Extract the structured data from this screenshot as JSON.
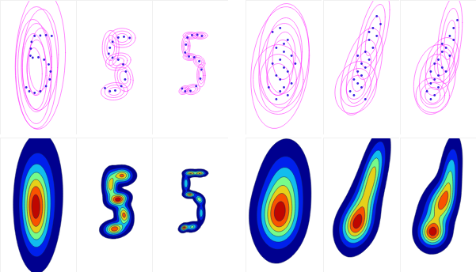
{
  "chart_data": [
    {
      "type": "scatter",
      "tick_labels": false,
      "xlim": [
        0,
        20
      ],
      "ylim": [
        0,
        34
      ],
      "color": "#3b1ee0",
      "x": [
        13.5,
        12,
        10.5,
        9,
        8.2,
        8,
        7.9,
        8.5,
        10,
        11.5,
        12.7,
        13.2,
        13,
        12,
        10.5,
        9,
        7.6,
        6.8
      ],
      "y": [
        25,
        25.2,
        25.1,
        25,
        23.5,
        21.8,
        20,
        19.5,
        19.6,
        19,
        17.8,
        16,
        14,
        12.3,
        11,
        10.6,
        11,
        12
      ],
      "components": {
        "color": "#ff33ff",
        "x": [
          9.5,
          10.5,
          9
        ],
        "y": [
          17,
          19,
          16
        ],
        "sx": [
          2.5,
          3,
          2
        ],
        "sy": [
          7,
          8,
          6
        ],
        "rho": [
          0,
          0.1,
          -0.1
        ]
      }
    },
    {
      "type": "scatter",
      "tick_labels": false,
      "xlim": [
        0,
        20
      ],
      "ylim": [
        0,
        34
      ],
      "color": "#3b1ee0",
      "x": [
        14,
        12.5,
        11,
        9.5,
        8.8,
        8.5,
        9.5,
        11,
        12.3,
        13,
        12.8,
        11.8,
        10.2,
        8.8,
        7.5
      ],
      "y": [
        24.5,
        24.8,
        24.6,
        23.5,
        22,
        20.5,
        19.5,
        19,
        17.8,
        16,
        14,
        12.3,
        11.2,
        11,
        11.8
      ],
      "components": {
        "color": "#ff33ff",
        "x": [
          12,
          9,
          11,
          12.5,
          10
        ],
        "y": [
          24.5,
          22,
          18.5,
          14.5,
          11
        ],
        "sx": [
          1.6,
          1,
          1.5,
          1.1,
          1.6
        ],
        "sy": [
          1.1,
          2,
          1,
          1.6,
          1
        ],
        "rho": [
          0,
          0,
          0.2,
          -0.2,
          0.1
        ]
      }
    },
    {
      "type": "scatter",
      "tick_labels": false,
      "xlim": [
        0,
        20
      ],
      "ylim": [
        0,
        34
      ],
      "color": "#3b1ee0",
      "x": [
        13,
        11.8,
        10.4,
        9.2,
        8.8,
        8.6,
        9.6,
        11,
        12.3,
        12.9,
        12.6,
        11.5,
        10,
        8.6,
        7.8
      ],
      "y": [
        25,
        25.3,
        25.2,
        24.6,
        22.8,
        20.8,
        19.8,
        19.6,
        18.6,
        16.5,
        14.2,
        12.3,
        11.1,
        11,
        11.7
      ],
      "components": {
        "color": "#ff33ff",
        "x": [
          12.5,
          10,
          8.8,
          9.8,
          12.3,
          12.8,
          10.5,
          8.3
        ],
        "y": [
          25.1,
          25.1,
          22.5,
          19.7,
          18.5,
          15,
          11.5,
          11.3
        ],
        "sx": [
          0.9,
          0.9,
          0.5,
          0.8,
          0.7,
          0.5,
          0.9,
          0.6
        ],
        "sy": [
          0.4,
          0.4,
          1.2,
          0.4,
          0.7,
          1.3,
          0.6,
          0.5
        ],
        "rho": [
          0,
          0,
          0,
          0,
          -0.3,
          0,
          0.2,
          0.3
        ]
      }
    },
    {
      "type": "scatter",
      "tick_labels": false,
      "xlim": [
        0,
        20
      ],
      "ylim": [
        0,
        34
      ],
      "color": "#3b1ee0",
      "x": [
        7,
        9,
        11,
        8,
        10,
        12,
        9,
        7,
        10,
        11,
        8,
        9,
        12,
        10,
        6,
        9,
        11,
        8,
        10,
        13
      ],
      "y": [
        26,
        27,
        24,
        22,
        21,
        20,
        19,
        18,
        17,
        16,
        15,
        14,
        13,
        12,
        12,
        11,
        10,
        9,
        23,
        18
      ],
      "components": {
        "color": "#ff33ff",
        "x": [
          9,
          10,
          8.5
        ],
        "y": [
          17,
          20,
          14
        ],
        "sx": [
          3.5,
          3,
          3
        ],
        "sy": [
          7,
          6,
          4
        ],
        "rho": [
          0.2,
          0.1,
          0
        ]
      }
    },
    {
      "type": "scatter",
      "tick_labels": false,
      "xlim": [
        0,
        20
      ],
      "ylim": [
        0,
        34
      ],
      "color": "#3b1ee0",
      "x": [
        14,
        15,
        13,
        14,
        12,
        13,
        11,
        12,
        10,
        11,
        9,
        10,
        8,
        9,
        10,
        7,
        8,
        11,
        9,
        12
      ],
      "y": [
        30,
        28,
        27,
        25,
        24,
        22,
        21,
        19,
        18,
        17,
        16,
        15,
        14,
        13,
        12,
        11,
        10,
        9,
        20,
        26
      ],
      "components": {
        "color": "#ff33ff",
        "x": [
          10,
          13,
          8.5
        ],
        "y": [
          16,
          25,
          12
        ],
        "sx": [
          2.5,
          2,
          2.5
        ],
        "sy": [
          5,
          5,
          3
        ],
        "rho": [
          0.5,
          0.6,
          0.2
        ]
      }
    },
    {
      "type": "scatter",
      "tick_labels": false,
      "xlim": [
        0,
        20
      ],
      "ylim": [
        0,
        34
      ],
      "color": "#3b1ee0",
      "x": [
        15,
        14,
        13,
        14,
        12,
        11,
        13,
        10,
        9,
        11,
        8,
        10,
        9,
        8,
        10,
        7,
        9,
        12,
        11,
        8
      ],
      "y": [
        29,
        27,
        25,
        24,
        22,
        21,
        20,
        19,
        18,
        17,
        16,
        15,
        14,
        13,
        12,
        11,
        10,
        16,
        23,
        9
      ],
      "components": {
        "color": "#ff33ff",
        "x": [
          9,
          13,
          11,
          8.5
        ],
        "y": [
          14,
          24,
          18,
          10
        ],
        "sx": [
          2.5,
          1.5,
          2,
          2
        ],
        "sy": [
          4,
          5,
          3,
          2
        ],
        "rho": [
          0.2,
          0.4,
          0.3,
          0
        ]
      }
    },
    {
      "type": "contour",
      "tick_labels": false,
      "xlim": [
        0,
        20
      ],
      "ylim": [
        0,
        34
      ],
      "components": {
        "x": [
          9.5,
          10.5,
          9
        ],
        "y": [
          17,
          19,
          16
        ],
        "sx": [
          2.5,
          3,
          2
        ],
        "sy": [
          7,
          8,
          6
        ],
        "rho": [
          0,
          0.1,
          -0.1
        ]
      }
    },
    {
      "type": "contour",
      "tick_labels": false,
      "xlim": [
        0,
        20
      ],
      "ylim": [
        0,
        34
      ],
      "components": {
        "x": [
          12,
          9,
          11,
          12.5,
          10
        ],
        "y": [
          24.5,
          22,
          18.5,
          14.5,
          11
        ],
        "sx": [
          1.6,
          1,
          1.5,
          1.1,
          1.6
        ],
        "sy": [
          1.1,
          2,
          1,
          1.6,
          1
        ],
        "rho": [
          0,
          0,
          0.2,
          -0.2,
          0.1
        ]
      }
    },
    {
      "type": "contour",
      "tick_labels": false,
      "xlim": [
        0,
        20
      ],
      "ylim": [
        0,
        34
      ],
      "components": {
        "x": [
          12.5,
          10,
          8.8,
          9.8,
          12.3,
          12.8,
          10.5,
          8.3
        ],
        "y": [
          25.1,
          25.1,
          22.5,
          19.7,
          18.5,
          15,
          11.5,
          11.3
        ],
        "sx": [
          0.9,
          0.9,
          0.5,
          0.8,
          0.7,
          0.5,
          0.9,
          0.6
        ],
        "sy": [
          0.4,
          0.4,
          1.2,
          0.4,
          0.7,
          1.3,
          0.6,
          0.5
        ],
        "rho": [
          0,
          0,
          0,
          0,
          -0.3,
          0,
          0.2,
          0.3
        ]
      }
    },
    {
      "type": "contour",
      "tick_labels": false,
      "xlim": [
        0,
        20
      ],
      "ylim": [
        0,
        34
      ],
      "components": {
        "x": [
          9,
          10,
          8.5
        ],
        "y": [
          17,
          20,
          14
        ],
        "sx": [
          3.5,
          3,
          3
        ],
        "sy": [
          7,
          6,
          4
        ],
        "rho": [
          0.2,
          0.1,
          0
        ]
      }
    },
    {
      "type": "contour",
      "tick_labels": false,
      "xlim": [
        0,
        20
      ],
      "ylim": [
        0,
        34
      ],
      "components": {
        "x": [
          10,
          13,
          8.5
        ],
        "y": [
          16,
          25,
          12
        ],
        "sx": [
          2.5,
          2,
          2.5
        ],
        "sy": [
          5,
          5,
          3
        ],
        "rho": [
          0.5,
          0.6,
          0.2
        ]
      }
    },
    {
      "type": "contour",
      "tick_labels": false,
      "xlim": [
        0,
        20
      ],
      "ylim": [
        0,
        34
      ],
      "components": {
        "x": [
          9,
          13,
          11,
          8.5
        ],
        "y": [
          14,
          24,
          18,
          10
        ],
        "sx": [
          2.5,
          1.5,
          2,
          2
        ],
        "sy": [
          4,
          5,
          3,
          2
        ],
        "rho": [
          0.2,
          0.4,
          0.3,
          0
        ]
      }
    }
  ]
}
